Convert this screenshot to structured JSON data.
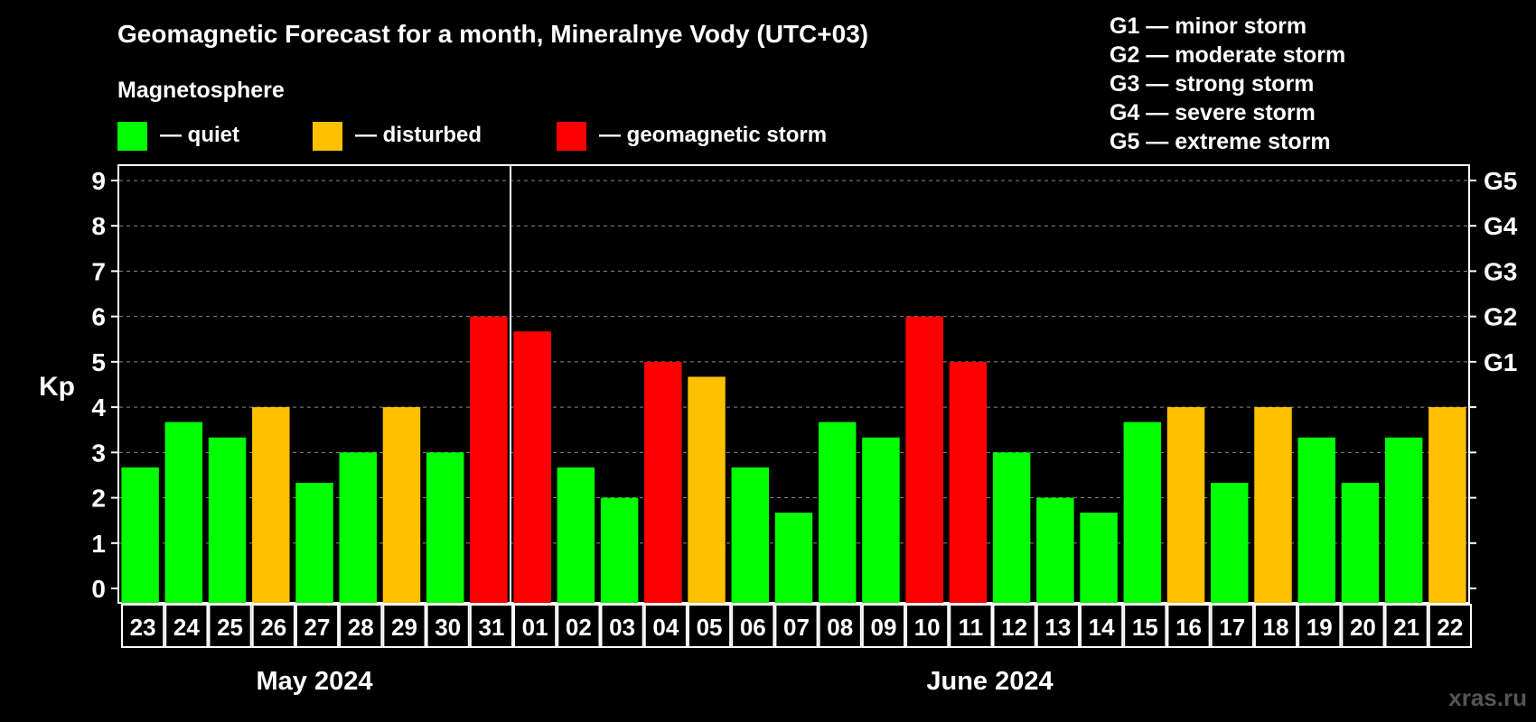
{
  "title": "Geomagnetic Forecast for a month, Mineralnye Vody (UTC+03)",
  "legend": {
    "heading": "Magnetosphere",
    "items": [
      {
        "label": "— quiet",
        "color": "#00ff00"
      },
      {
        "label": "— disturbed",
        "color": "#ffc000"
      },
      {
        "label": "— geomagnetic storm",
        "color": "#ff0000"
      }
    ]
  },
  "storm_scale": [
    "G1 — minor storm",
    "G2 — moderate storm",
    "G3 — strong storm",
    "G4 — severe storm",
    "G5 — extreme storm"
  ],
  "watermark": "xras.ru",
  "chart_data": {
    "type": "bar",
    "ylabel": "Kp",
    "ylim": [
      0,
      9
    ],
    "yticks": [
      "0",
      "1",
      "2",
      "3",
      "4",
      "5",
      "6",
      "7",
      "8",
      "9"
    ],
    "right_ticks": [
      {
        "value": 5,
        "label": "G1"
      },
      {
        "value": 6,
        "label": "G2"
      },
      {
        "value": 7,
        "label": "G3"
      },
      {
        "value": 8,
        "label": "G4"
      },
      {
        "value": 9,
        "label": "G5"
      }
    ],
    "grid": true,
    "months": [
      {
        "label": "May 2024",
        "days": 9
      },
      {
        "label": "June 2024",
        "days": 22
      }
    ],
    "categories": [
      "23",
      "24",
      "25",
      "26",
      "27",
      "28",
      "29",
      "30",
      "31",
      "01",
      "02",
      "03",
      "04",
      "05",
      "06",
      "07",
      "08",
      "09",
      "10",
      "11",
      "12",
      "13",
      "14",
      "15",
      "16",
      "17",
      "18",
      "19",
      "20",
      "21",
      "22"
    ],
    "values": [
      2.67,
      3.67,
      3.33,
      4.0,
      2.33,
      3.0,
      4.0,
      3.0,
      6.0,
      5.67,
      2.67,
      2.0,
      5.0,
      4.67,
      2.67,
      1.67,
      3.67,
      3.33,
      6.0,
      5.0,
      3.0,
      2.0,
      1.67,
      3.67,
      4.0,
      2.33,
      4.0,
      3.33,
      2.33,
      3.33,
      4.0
    ],
    "levels": [
      "quiet",
      "quiet",
      "quiet",
      "disturbed",
      "quiet",
      "quiet",
      "disturbed",
      "quiet",
      "storm",
      "storm",
      "quiet",
      "quiet",
      "storm",
      "disturbed",
      "quiet",
      "quiet",
      "quiet",
      "quiet",
      "storm",
      "storm",
      "quiet",
      "quiet",
      "quiet",
      "quiet",
      "disturbed",
      "quiet",
      "disturbed",
      "quiet",
      "quiet",
      "quiet",
      "disturbed"
    ],
    "level_colors": {
      "quiet": "#00ff00",
      "disturbed": "#ffc000",
      "storm": "#ff0000"
    }
  }
}
